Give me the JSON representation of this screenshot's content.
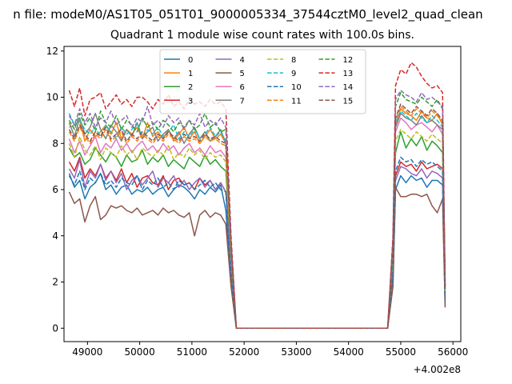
{
  "figure_title": "n file: modeM0/AS1T05_051T01_9000005334_37544cztM0_level2_quad_clean",
  "chart_data": {
    "type": "line",
    "title": "Quadrant 1 module wise count rates with 100.0s bins.",
    "xlabel": "",
    "ylabel": "",
    "x_offset_label": "+4.002e8",
    "xlim": [
      48550,
      56150
    ],
    "ylim": [
      -0.58,
      12.2
    ],
    "x_ticks": [
      49000,
      50000,
      51000,
      52000,
      53000,
      54000,
      55000,
      56000
    ],
    "x_tick_labels": [
      "49000",
      "50000",
      "51000",
      "52000",
      "53000",
      "54000",
      "55000",
      "56000"
    ],
    "y_ticks": [
      0,
      2,
      4,
      6,
      8,
      10,
      12
    ],
    "y_tick_labels": [
      "0",
      "2",
      "4",
      "6",
      "8",
      "10",
      "12"
    ],
    "grid": false,
    "legend": {
      "placement": "top-center",
      "columns": 4
    },
    "segments": {
      "seg1": [
        48650,
        51650
      ],
      "drop": [
        51750
      ],
      "gap": [
        51850,
        54750
      ],
      "seg2": [
        54850,
        55850
      ]
    },
    "series": [
      {
        "name": "0",
        "color": "#1f77b4",
        "dash": false,
        "level1": 6.0,
        "level2": 6.1,
        "end": 2.0,
        "values1": [
          6.7,
          6.1,
          6.4,
          5.6,
          6.1,
          6.3,
          6.7,
          6.0,
          6.2,
          5.8,
          6.1,
          6.2,
          5.8,
          6.0,
          5.9,
          6.1,
          5.8,
          6.0,
          6.1,
          5.7,
          6.0,
          6.2,
          6.1,
          5.9,
          5.6,
          6.0,
          5.8,
          6.1,
          5.9,
          6.2,
          5.1
        ],
        "values2": [
          6.0,
          6.6,
          6.3,
          6.6,
          6.4,
          6.5,
          6.1,
          6.4,
          6.4,
          6.2
        ]
      },
      {
        "name": "1",
        "color": "#ff7f0e",
        "dash": false,
        "level1": 8.4,
        "level2": 9.2,
        "end": 3.5,
        "values1": [
          8.7,
          8.8,
          9.0,
          8.1,
          8.6,
          8.3,
          8.5,
          8.8,
          8.4,
          8.9,
          8.2,
          8.6,
          8.4,
          8.7,
          8.2,
          8.9,
          8.3,
          8.5,
          8.2,
          8.6,
          8.1,
          8.4,
          8.7,
          8.2,
          8.5,
          8.0,
          8.3,
          8.6,
          8.2,
          8.4,
          8.0
        ],
        "values2": [
          8.8,
          9.5,
          9.3,
          9.2,
          9.0,
          9.4,
          9.1,
          9.0,
          9.3,
          8.8
        ]
      },
      {
        "name": "2",
        "color": "#2ca02c",
        "dash": false,
        "level1": 7.4,
        "level2": 7.9,
        "end": 3.1,
        "values1": [
          7.8,
          7.4,
          7.6,
          7.1,
          7.3,
          7.8,
          7.5,
          7.2,
          7.6,
          7.4,
          7.0,
          7.5,
          7.2,
          7.3,
          7.7,
          7.1,
          7.4,
          7.2,
          7.5,
          7.0,
          7.3,
          7.1,
          6.9,
          7.4,
          7.2,
          7.0,
          7.5,
          7.1,
          7.3,
          7.0,
          6.8
        ],
        "values2": [
          7.6,
          8.5,
          7.8,
          8.2,
          7.9,
          8.3,
          7.7,
          8.1,
          7.9,
          7.6
        ]
      },
      {
        "name": "3",
        "color": "#d62728",
        "dash": false,
        "level1": 6.7,
        "level2": 7.0,
        "end": 2.7,
        "values1": [
          7.2,
          6.8,
          7.4,
          6.5,
          6.9,
          6.6,
          7.1,
          6.5,
          6.8,
          6.4,
          6.9,
          6.3,
          6.7,
          6.1,
          6.5,
          6.6,
          6.3,
          6.2,
          6.6,
          6.0,
          6.4,
          6.5,
          6.2,
          6.3,
          6.0,
          6.5,
          6.2,
          6.4,
          6.0,
          6.3,
          5.9
        ],
        "values2": [
          6.6,
          7.2,
          7.0,
          7.1,
          6.8,
          7.2,
          6.9,
          7.0,
          7.1,
          6.9
        ]
      },
      {
        "name": "4",
        "color": "#9467bd",
        "dash": false,
        "level1": 6.5,
        "level2": 6.8,
        "end": 2.3,
        "values1": [
          6.9,
          6.5,
          7.3,
          6.1,
          6.8,
          6.5,
          7.1,
          6.4,
          6.8,
          6.3,
          6.7,
          6.0,
          6.4,
          6.6,
          6.2,
          6.5,
          6.8,
          6.1,
          6.5,
          6.3,
          6.6,
          6.1,
          6.4,
          6.0,
          6.3,
          6.5,
          6.1,
          6.4,
          6.0,
          6.3,
          5.9
        ],
        "values2": [
          6.4,
          7.0,
          6.9,
          6.7,
          6.6,
          6.9,
          6.5,
          6.8,
          6.7,
          6.5
        ]
      },
      {
        "name": "5",
        "color": "#8c564b",
        "dash": false,
        "level1": 5.0,
        "level2": 5.8,
        "end": 1.8,
        "values1": [
          5.9,
          5.4,
          5.6,
          4.6,
          5.3,
          5.7,
          4.7,
          4.9,
          5.3,
          5.2,
          5.3,
          5.1,
          5.0,
          5.2,
          4.9,
          5.0,
          5.1,
          4.9,
          5.2,
          5.0,
          5.1,
          4.9,
          4.8,
          5.0,
          4.0,
          4.9,
          5.1,
          4.8,
          5.0,
          4.9,
          4.5
        ],
        "values2": [
          6.1,
          5.7,
          5.7,
          5.8,
          5.8,
          5.7,
          5.8,
          5.3,
          5.0,
          5.6
        ]
      },
      {
        "name": "6",
        "color": "#e377c2",
        "dash": false,
        "level1": 7.9,
        "level2": 8.8,
        "end": 3.3,
        "values1": [
          8.2,
          7.6,
          8.1,
          7.5,
          7.9,
          8.3,
          7.6,
          8.0,
          7.8,
          8.2,
          7.7,
          8.0,
          7.6,
          7.9,
          8.1,
          7.7,
          7.9,
          7.6,
          8.0,
          7.7,
          7.9,
          7.5,
          7.8,
          8.0,
          7.6,
          7.8,
          7.5,
          7.9,
          7.6,
          7.7,
          7.4
        ],
        "values2": [
          8.5,
          9.1,
          8.9,
          8.6,
          8.8,
          8.9,
          8.7,
          8.5,
          8.8,
          8.4
        ]
      },
      {
        "name": "7",
        "color": "#7f7f7f",
        "dash": false,
        "level1": 8.3,
        "level2": 9.0,
        "end": 3.2,
        "values1": [
          8.9,
          8.3,
          9.1,
          8.4,
          8.7,
          9.3,
          8.6,
          8.2,
          8.8,
          8.5,
          8.1,
          8.6,
          8.3,
          8.9,
          8.2,
          8.5,
          8.7,
          8.1,
          8.4,
          8.6,
          8.2,
          8.5,
          8.0,
          8.4,
          8.7,
          8.2,
          8.5,
          8.1,
          8.3,
          8.6,
          8.0
        ],
        "values2": [
          8.7,
          9.3,
          9.1,
          9.0,
          8.8,
          9.2,
          8.9,
          9.0,
          8.8,
          8.6
        ]
      },
      {
        "name": "8",
        "color": "#bcbd22",
        "dash": true,
        "level1": 7.7,
        "level2": 8.3,
        "end": 3.0,
        "values1": [
          8.0,
          7.4,
          8.3,
          7.7,
          7.5,
          7.9,
          7.3,
          7.8,
          7.6,
          7.4,
          7.9,
          7.5,
          7.7,
          7.3,
          7.8,
          7.6,
          7.4,
          7.7,
          7.5,
          7.9,
          7.3,
          7.6,
          7.4,
          7.8,
          7.5,
          7.7,
          7.3,
          7.6,
          7.4,
          7.5,
          7.2
        ],
        "values2": [
          8.1,
          8.6,
          8.4,
          8.2,
          8.5,
          8.3,
          8.1,
          8.4,
          8.2,
          8.0
        ]
      },
      {
        "name": "9",
        "color": "#17becf",
        "dash": true,
        "level1": 8.5,
        "level2": 9.1,
        "end": 3.4,
        "values1": [
          9.3,
          8.8,
          9.0,
          8.6,
          8.4,
          8.7,
          8.3,
          8.8,
          8.5,
          8.2,
          8.7,
          8.4,
          8.6,
          8.9,
          8.3,
          8.6,
          8.4,
          8.7,
          8.3,
          8.5,
          8.8,
          8.2,
          8.5,
          8.3,
          8.6,
          8.2,
          8.4,
          8.7,
          8.3,
          8.5,
          8.1
        ],
        "values2": [
          8.9,
          9.4,
          9.2,
          9.0,
          9.3,
          9.1,
          8.9,
          9.2,
          9.0,
          8.7
        ]
      },
      {
        "name": "10",
        "color": "#1f77b4",
        "dash": true,
        "level1": 6.4,
        "level2": 7.2,
        "end": 2.4,
        "values1": [
          6.6,
          6.2,
          6.8,
          6.0,
          6.5,
          6.3,
          6.7,
          6.2,
          6.4,
          6.1,
          6.5,
          6.3,
          6.2,
          6.6,
          6.0,
          6.4,
          6.2,
          6.5,
          6.1,
          6.3,
          6.0,
          6.4,
          6.2,
          6.3,
          6.0,
          6.2,
          6.4,
          6.1,
          6.3,
          6.0,
          5.9
        ],
        "values2": [
          6.8,
          7.4,
          7.2,
          7.3,
          7.0,
          7.3,
          7.1,
          7.2,
          7.0,
          6.8
        ]
      },
      {
        "name": "11",
        "color": "#ff7f0e",
        "dash": true,
        "level1": 8.2,
        "level2": 9.3,
        "end": 3.6,
        "values1": [
          8.5,
          8.1,
          8.7,
          8.3,
          8.0,
          8.4,
          8.2,
          8.6,
          8.1,
          8.3,
          8.5,
          8.0,
          8.3,
          8.1,
          8.4,
          8.2,
          8.0,
          8.3,
          8.1,
          8.4,
          8.2,
          8.0,
          8.3,
          8.1,
          8.2,
          8.0,
          8.3,
          8.1,
          8.2,
          8.0,
          7.9
        ],
        "values2": [
          9.0,
          9.6,
          9.4,
          9.2,
          9.5,
          9.3,
          9.1,
          9.4,
          9.2,
          8.9
        ]
      },
      {
        "name": "12",
        "color": "#2ca02c",
        "dash": true,
        "level1": 8.8,
        "level2": 9.8,
        "end": 3.7,
        "values1": [
          9.0,
          8.6,
          9.3,
          8.8,
          9.1,
          8.5,
          9.4,
          8.9,
          8.7,
          9.2,
          8.6,
          9.0,
          8.8,
          8.5,
          9.1,
          8.7,
          8.9,
          8.6,
          9.0,
          8.8,
          8.5,
          8.9,
          8.7,
          9.0,
          8.6,
          8.8,
          9.3,
          8.7,
          8.9,
          8.5,
          8.6
        ],
        "values2": [
          9.6,
          10.2,
          9.9,
          9.8,
          9.7,
          10.0,
          9.8,
          9.6,
          9.9,
          9.5
        ]
      },
      {
        "name": "13",
        "color": "#d62728",
        "dash": true,
        "level1": 9.8,
        "level2": 11.0,
        "end": 4.0,
        "values1": [
          10.3,
          9.6,
          10.4,
          9.2,
          9.9,
          10.0,
          10.2,
          9.5,
          9.8,
          10.1,
          9.7,
          9.9,
          9.6,
          10.0,
          10.0,
          9.8,
          9.5,
          9.9,
          9.7,
          10.1,
          9.6,
          9.8,
          9.5,
          9.9,
          9.7,
          9.8,
          9.6,
          9.9,
          9.7,
          9.8,
          9.5
        ],
        "values2": [
          10.5,
          11.2,
          11.0,
          11.5,
          11.3,
          10.9,
          10.6,
          10.4,
          10.5,
          10.2
        ]
      },
      {
        "name": "14",
        "color": "#9467bd",
        "dash": true,
        "level1": 9.0,
        "level2": 10.0,
        "end": 3.8,
        "values1": [
          9.2,
          8.8,
          9.5,
          8.9,
          9.3,
          8.7,
          9.1,
          8.9,
          9.4,
          8.8,
          9.0,
          9.2,
          8.7,
          9.1,
          8.9,
          9.6,
          8.8,
          9.0,
          8.7,
          9.2,
          8.9,
          9.1,
          8.6,
          9.0,
          8.8,
          9.3,
          8.7,
          9.0,
          8.8,
          9.1,
          8.7
        ],
        "values2": [
          9.9,
          10.3,
          10.1,
          10.0,
          9.8,
          10.2,
          9.9,
          10.0,
          9.8,
          9.6
        ]
      },
      {
        "name": "15",
        "color": "#8c564b",
        "dash": true,
        "level1": 8.4,
        "level2": 9.4,
        "end": 3.5,
        "values1": [
          8.6,
          8.2,
          8.8,
          8.4,
          8.1,
          8.5,
          8.3,
          8.7,
          8.2,
          8.4,
          8.6,
          8.1,
          8.4,
          8.2,
          8.5,
          8.3,
          8.1,
          8.4,
          8.2,
          8.5,
          8.3,
          8.1,
          8.4,
          8.2,
          8.3,
          8.1,
          8.4,
          8.2,
          8.3,
          8.1,
          8.0
        ],
        "values2": [
          9.1,
          9.7,
          9.5,
          9.3,
          9.6,
          9.4,
          9.2,
          9.5,
          9.3,
          9.0
        ]
      }
    ]
  }
}
